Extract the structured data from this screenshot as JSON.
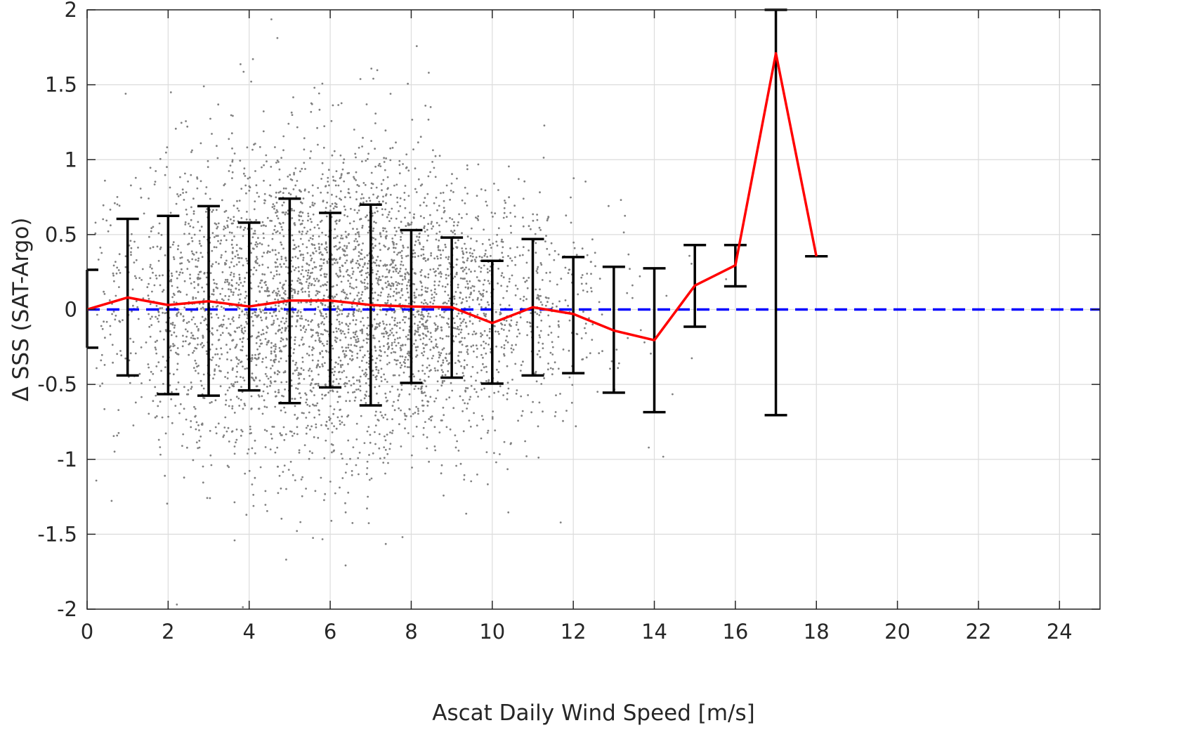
{
  "chart_data": {
    "type": "scatter",
    "xlabel": "Ascat Daily Wind Speed [m/s]",
    "ylabel": "Δ SSS (SAT-Argo)",
    "xlim": [
      0,
      25
    ],
    "ylim": [
      -2,
      2
    ],
    "xticks": [
      0,
      2,
      4,
      6,
      8,
      10,
      12,
      14,
      16,
      18,
      20,
      22,
      24
    ],
    "yticks": [
      2,
      1.5,
      1,
      0.5,
      0,
      -0.5,
      -1,
      -1.5,
      -2
    ],
    "xtick_labels": [
      "0",
      "2",
      "4",
      "6",
      "8",
      "10",
      "12",
      "14",
      "16",
      "18",
      "20",
      "22",
      "24"
    ],
    "ytick_labels": [
      "2",
      "1.5",
      "1",
      "0.5",
      "0",
      "-0.5",
      "-1",
      "-1.5",
      "-2"
    ],
    "grid": true,
    "reference_line": {
      "y": 0,
      "color": "#0000ff",
      "style": "dashed"
    },
    "mean_series": {
      "color": "#ff0000",
      "x": [
        0,
        1,
        2,
        3,
        4,
        5,
        6,
        7,
        8,
        9,
        10,
        11,
        12,
        13,
        14,
        15,
        16,
        17,
        18
      ],
      "y": [
        0.0,
        0.08,
        0.03,
        0.055,
        0.02,
        0.06,
        0.06,
        0.03,
        0.02,
        0.015,
        -0.09,
        0.015,
        -0.03,
        -0.14,
        -0.205,
        0.16,
        0.295,
        1.71,
        0.355
      ]
    },
    "error_bars": {
      "color": "#000000",
      "x": [
        0,
        1,
        2,
        3,
        4,
        5,
        6,
        7,
        8,
        9,
        10,
        11,
        12,
        13,
        14,
        15,
        16,
        17,
        18
      ],
      "upper": [
        0.265,
        0.605,
        0.625,
        0.69,
        0.58,
        0.74,
        0.645,
        0.7,
        0.53,
        0.48,
        0.325,
        0.47,
        0.35,
        0.285,
        0.275,
        0.43,
        0.43,
        2.0,
        0.355
      ],
      "lower": [
        -0.255,
        -0.44,
        -0.565,
        -0.575,
        -0.54,
        -0.625,
        -0.52,
        -0.64,
        -0.49,
        -0.455,
        -0.495,
        -0.44,
        -0.425,
        -0.555,
        -0.685,
        -0.115,
        0.155,
        -0.705,
        0.355
      ]
    },
    "scatter": {
      "color": "#808080",
      "bins": [
        {
          "x_range": [
            0.2,
            1.5
          ],
          "center": 0.1,
          "spread": 0.45,
          "count": 120
        },
        {
          "x_range": [
            1.5,
            2.5
          ],
          "center": 0.05,
          "spread": 0.5,
          "count": 240
        },
        {
          "x_range": [
            2.5,
            3.5
          ],
          "center": 0.05,
          "spread": 0.52,
          "count": 340
        },
        {
          "x_range": [
            3.5,
            4.5
          ],
          "center": 0.02,
          "spread": 0.52,
          "count": 440
        },
        {
          "x_range": [
            4.5,
            5.5
          ],
          "center": 0.05,
          "spread": 0.55,
          "count": 520
        },
        {
          "x_range": [
            5.5,
            6.5
          ],
          "center": 0.06,
          "spread": 0.55,
          "count": 560
        },
        {
          "x_range": [
            6.5,
            7.5
          ],
          "center": 0.03,
          "spread": 0.55,
          "count": 560
        },
        {
          "x_range": [
            7.5,
            8.5
          ],
          "center": 0.02,
          "spread": 0.48,
          "count": 500
        },
        {
          "x_range": [
            8.5,
            9.5
          ],
          "center": 0.0,
          "spread": 0.45,
          "count": 380
        },
        {
          "x_range": [
            9.5,
            10.5
          ],
          "center": -0.05,
          "spread": 0.42,
          "count": 260
        },
        {
          "x_range": [
            10.5,
            11.5
          ],
          "center": -0.02,
          "spread": 0.42,
          "count": 160
        },
        {
          "x_range": [
            11.5,
            12.5
          ],
          "center": -0.05,
          "spread": 0.4,
          "count": 80
        },
        {
          "x_range": [
            12.5,
            13.5
          ],
          "center": -0.1,
          "spread": 0.4,
          "count": 25
        },
        {
          "x_range": [
            13.5,
            14.5
          ],
          "center": -0.2,
          "spread": 0.45,
          "count": 8
        },
        {
          "x_range": [
            14.5,
            16.5
          ],
          "center": 0.2,
          "spread": 0.25,
          "count": 4
        }
      ]
    }
  }
}
